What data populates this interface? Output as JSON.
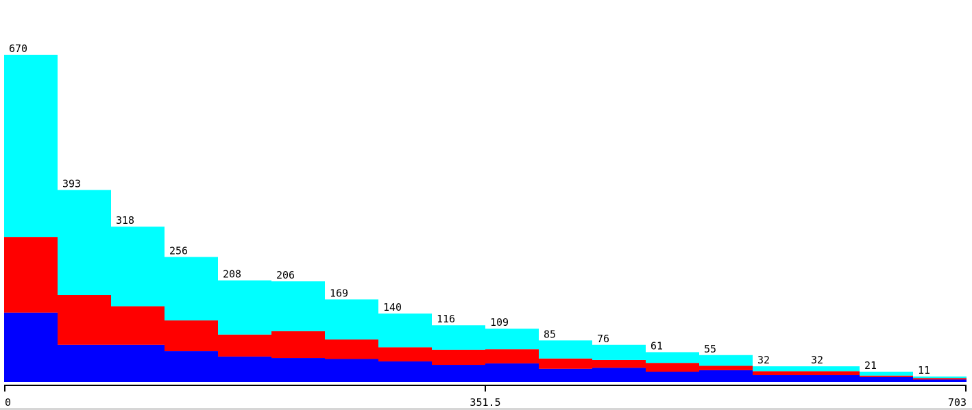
{
  "chart_data": {
    "type": "bar",
    "stacked": true,
    "xlim": [
      0,
      703
    ],
    "x_ticks": [
      "0",
      "351.5",
      "703"
    ],
    "series": [
      {
        "color": "#0000ff",
        "values": [
          142,
          76,
          76,
          63,
          52,
          49,
          47,
          42,
          35,
          38,
          27,
          29,
          21,
          24,
          14,
          14,
          10,
          5
        ]
      },
      {
        "color": "#ff0000",
        "values": [
          155,
          102,
          79,
          63,
          45,
          55,
          40,
          29,
          31,
          29,
          21,
          16,
          18,
          9,
          8,
          8,
          3,
          3
        ]
      },
      {
        "color": "#00ffff",
        "values": [
          373,
          215,
          163,
          130,
          111,
          102,
          82,
          69,
          50,
          42,
          37,
          31,
          22,
          22,
          10,
          10,
          8,
          3
        ]
      }
    ],
    "totals": [
      670,
      393,
      318,
      256,
      208,
      206,
      169,
      140,
      116,
      109,
      85,
      76,
      61,
      55,
      32,
      32,
      21,
      11
    ],
    "total_labels": [
      "670",
      "393",
      "318",
      "256",
      "208",
      "206",
      "169",
      "140",
      "116",
      "109",
      "85",
      "76",
      "61",
      "55",
      "32",
      "32",
      "21",
      "11"
    ],
    "ylim": [
      0,
      670
    ]
  }
}
